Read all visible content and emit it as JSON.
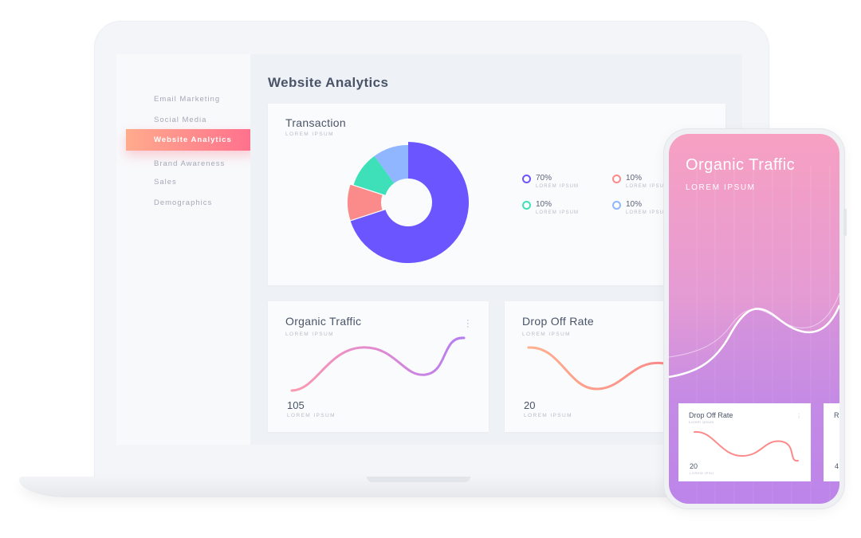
{
  "sidebar": {
    "items": [
      {
        "label": "Email Marketing"
      },
      {
        "label": "Social Media"
      },
      {
        "label": "Website Analytics"
      },
      {
        "label": "Brand Awareness"
      },
      {
        "label": "Sales"
      },
      {
        "label": "Demographics"
      }
    ],
    "active_index": 2
  },
  "main": {
    "title": "Website Analytics",
    "transaction": {
      "title": "Transaction",
      "subtitle": "LOREM IPSUM",
      "legend": [
        {
          "value": "70%",
          "label": "LOREM IPSUM",
          "color": "#6a55ff"
        },
        {
          "value": "10%",
          "label": "LOREM IPSUM",
          "color": "#fb8a8a"
        },
        {
          "value": "10%",
          "label": "LOREM IPSUM",
          "color": "#3de0b8"
        },
        {
          "value": "10%",
          "label": "LOREM IPSUM",
          "color": "#8fb6ff"
        }
      ]
    },
    "organic": {
      "title": "Organic Traffic",
      "subtitle": "LOREM IPSUM",
      "value": "105",
      "value_label": "LOREM IPSUM"
    },
    "dropoff": {
      "title": "Drop Off Rate",
      "subtitle": "LOREM IPSUM",
      "value": "20",
      "value_label": "LOREM IPSUM"
    }
  },
  "phone": {
    "title": "Organic Traffic",
    "subtitle": "LOREM IPSUM",
    "card": {
      "title": "Drop Off Rate",
      "subtitle": "Lorem ipsum",
      "value": "20",
      "value_label": "LOREM IPSU"
    },
    "card2": {
      "title_fragment": "R",
      "value_fragment": "4"
    }
  },
  "chart_data": [
    {
      "type": "pie",
      "categories": [
        "",
        "",
        "",
        ""
      ],
      "values": [
        70,
        10,
        10,
        10
      ],
      "colors": [
        "#6a55ff",
        "#fb8a8a",
        "#3de0b8",
        "#8fb6ff"
      ],
      "donut": true
    }
  ],
  "colors": {
    "accent_start": "#ffab8d",
    "accent_end": "#ff6f8d",
    "text": "#4a5468",
    "muted": "#a4a9b8"
  }
}
